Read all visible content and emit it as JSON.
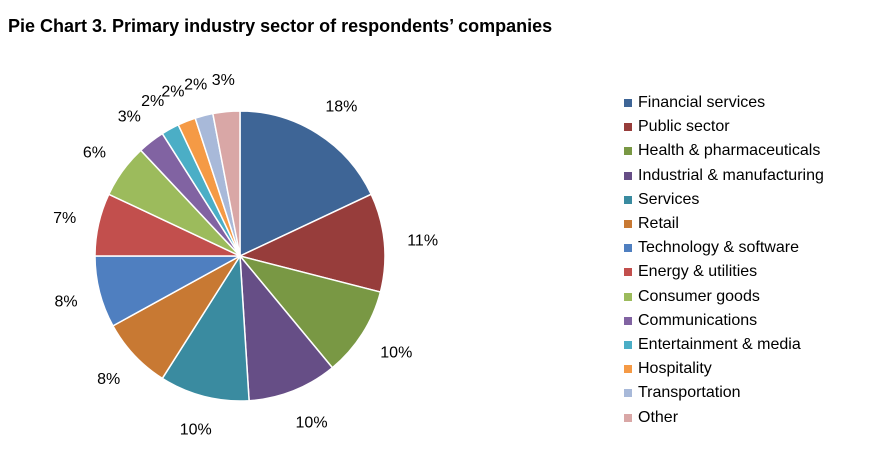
{
  "chart_data": {
    "type": "pie",
    "title": "Pie Chart 3. Primary industry sector of respondents’ companies",
    "legend_position": "right",
    "slices": [
      {
        "name": "Financial services",
        "value": 18,
        "label": "18%",
        "color": "#3E6596"
      },
      {
        "name": "Public sector",
        "value": 11,
        "label": "11%",
        "color": "#973D3B"
      },
      {
        "name": "Health & pharmaceuticals",
        "value": 10,
        "label": "10%",
        "color": "#799844"
      },
      {
        "name": "Industrial & manufacturing",
        "value": 10,
        "label": "10%",
        "color": "#664E86"
      },
      {
        "name": "Services",
        "value": 10,
        "label": "10%",
        "color": "#3A8BA0"
      },
      {
        "name": "Retail",
        "value": 8,
        "label": "8%",
        "color": "#C87933"
      },
      {
        "name": "Technology & software",
        "value": 8,
        "label": "8%",
        "color": "#4F7FC0"
      },
      {
        "name": "Energy & utilities",
        "value": 7,
        "label": "7%",
        "color": "#C24F4D"
      },
      {
        "name": "Consumer goods",
        "value": 6,
        "label": "6%",
        "color": "#9CBB5C"
      },
      {
        "name": "Communications",
        "value": 3,
        "label": "3%",
        "color": "#8163A2"
      },
      {
        "name": "Entertainment & media",
        "value": 2,
        "label": "2%",
        "color": "#4BAEC6"
      },
      {
        "name": "Hospitality",
        "value": 2,
        "label": "2%",
        "color": "#F59A45"
      },
      {
        "name": "Transportation",
        "value": 2,
        "label": "2%",
        "color": "#A8B9D9"
      },
      {
        "name": "Other",
        "value": 3,
        "label": "3%",
        "color": "#D9A7A6"
      }
    ]
  }
}
